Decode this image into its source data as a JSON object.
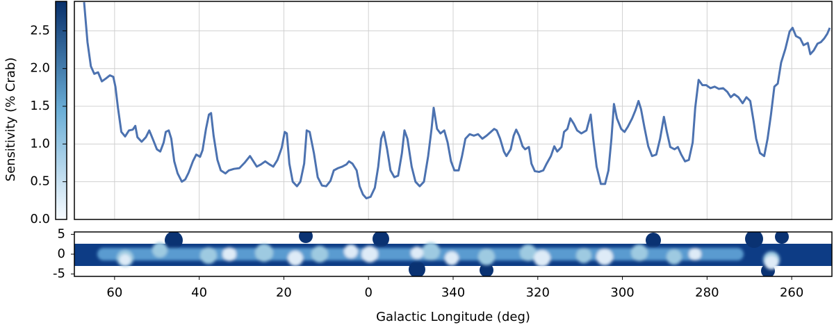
{
  "chart_data": [
    {
      "type": "line",
      "ylabel": "Sensitivity (% Crab)",
      "color": "#4c72b0",
      "colorbar": [
        "#f7fbff",
        "#6baed6",
        "#08306b"
      ],
      "grid": true,
      "ylim": [
        0,
        2.89
      ],
      "yticks": [
        {
          "value": 0,
          "label": "0.0"
        },
        0.5,
        {
          "value": 1,
          "label": "1.0"
        },
        1.5,
        {
          "value": 2,
          "label": "2.0"
        },
        2.5
      ],
      "x": [
        67.2,
        66.4,
        65.6,
        64.8,
        63.9,
        63.0,
        62.0,
        61.1,
        60.3,
        59.8,
        59.2,
        58.4,
        57.5,
        56.6,
        55.7,
        55.1,
        54.6,
        53.6,
        52.6,
        51.8,
        51.0,
        50.0,
        49.2,
        48.4,
        47.9,
        47.2,
        46.6,
        45.9,
        45.1,
        44.1,
        43.3,
        42.5,
        41.5,
        40.7,
        39.8,
        39.2,
        38.4,
        37.7,
        37.2,
        36.6,
        35.7,
        34.9,
        33.8,
        33.0,
        31.8,
        30.5,
        29.3,
        28.0,
        27.2,
        26.4,
        25.4,
        24.4,
        23.4,
        22.5,
        21.5,
        20.5,
        19.8,
        19.3,
        18.7,
        17.9,
        16.9,
        16.1,
        15.2,
        14.6,
        13.9,
        12.9,
        12.0,
        11.0,
        10.0,
        9.0,
        8.2,
        7.2,
        6.2,
        5.2,
        4.6,
        3.8,
        2.8,
        2.1,
        1.3,
        0.5,
        -0.5,
        -1.5,
        -2.3,
        -3.0,
        -3.6,
        -4.4,
        -5.2,
        -6.1,
        -7.0,
        -7.9,
        -8.5,
        -9.2,
        -10.2,
        -11.1,
        -12.1,
        -13.1,
        -14.1,
        -14.9,
        -15.4,
        -16.2,
        -17.0,
        -17.9,
        -18.7,
        -19.5,
        -20.3,
        -21.3,
        -22.1,
        -22.9,
        -23.9,
        -24.9,
        -25.9,
        -26.9,
        -27.9,
        -28.9,
        -29.7,
        -30.3,
        -31.1,
        -32.0,
        -32.6,
        -33.6,
        -34.3,
        -34.9,
        -35.6,
        -36.4,
        -37.0,
        -37.9,
        -38.5,
        -39.3,
        -40.3,
        -41.3,
        -42.1,
        -43.1,
        -43.9,
        -44.6,
        -45.6,
        -46.2,
        -47.0,
        -47.7,
        -48.5,
        -49.3,
        -50.3,
        -51.5,
        -52.5,
        -53.1,
        -53.9,
        -54.9,
        -55.9,
        -56.7,
        -57.4,
        -58.0,
        -58.7,
        -59.7,
        -60.5,
        -61.3,
        -62.3,
        -63.1,
        -63.8,
        -64.4,
        -65.2,
        -66.1,
        -67.0,
        -68.0,
        -68.9,
        -69.8,
        -70.5,
        -71.3,
        -72.3,
        -73.1,
        -73.9,
        -74.8,
        -75.7,
        -76.6,
        -77.2,
        -78.0,
        -78.9,
        -79.8,
        -80.8,
        -81.8,
        -82.8,
        -83.8,
        -84.8,
        -85.6,
        -86.4,
        -87.4,
        -88.4,
        -89.3,
        -90.2,
        -91.0,
        -91.6,
        -92.5,
        -93.5,
        -94.3,
        -95.1,
        -95.9,
        -96.7,
        -97.5,
        -98.5,
        -99.5,
        -100.2,
        -101.0,
        -102.0,
        -102.8,
        -103.8,
        -104.4,
        -105.2,
        -106.1,
        -106.9,
        -107.7,
        -108.4,
        -109.0
      ],
      "values": [
        2.88,
        2.35,
        2.03,
        1.93,
        1.95,
        1.83,
        1.87,
        1.91,
        1.89,
        1.76,
        1.48,
        1.16,
        1.1,
        1.18,
        1.19,
        1.24,
        1.09,
        1.03,
        1.09,
        1.18,
        1.07,
        0.93,
        0.9,
        1.02,
        1.16,
        1.18,
        1.07,
        0.77,
        0.61,
        0.5,
        0.53,
        0.62,
        0.77,
        0.86,
        0.83,
        0.92,
        1.2,
        1.39,
        1.41,
        1.11,
        0.79,
        0.65,
        0.61,
        0.65,
        0.67,
        0.68,
        0.75,
        0.84,
        0.77,
        0.7,
        0.73,
        0.77,
        0.73,
        0.7,
        0.79,
        0.95,
        1.16,
        1.14,
        0.74,
        0.5,
        0.44,
        0.5,
        0.74,
        1.18,
        1.16,
        0.88,
        0.56,
        0.45,
        0.44,
        0.51,
        0.65,
        0.68,
        0.7,
        0.73,
        0.77,
        0.74,
        0.65,
        0.44,
        0.33,
        0.28,
        0.3,
        0.42,
        0.7,
        1.07,
        1.16,
        0.93,
        0.65,
        0.56,
        0.58,
        0.88,
        1.18,
        1.07,
        0.7,
        0.5,
        0.44,
        0.5,
        0.84,
        1.2,
        1.48,
        1.2,
        1.14,
        1.18,
        1.02,
        0.77,
        0.65,
        0.65,
        0.84,
        1.07,
        1.13,
        1.11,
        1.13,
        1.07,
        1.11,
        1.16,
        1.2,
        1.18,
        1.07,
        0.9,
        0.84,
        0.93,
        1.11,
        1.19,
        1.11,
        0.97,
        0.93,
        0.96,
        0.74,
        0.64,
        0.63,
        0.65,
        0.74,
        0.84,
        0.97,
        0.9,
        0.96,
        1.16,
        1.2,
        1.34,
        1.27,
        1.18,
        1.14,
        1.18,
        1.39,
        1.07,
        0.7,
        0.47,
        0.47,
        0.65,
        1.07,
        1.53,
        1.34,
        1.2,
        1.16,
        1.23,
        1.34,
        1.45,
        1.57,
        1.46,
        1.22,
        0.97,
        0.84,
        0.86,
        1.07,
        1.36,
        1.16,
        0.96,
        0.93,
        0.96,
        0.86,
        0.77,
        0.79,
        1.02,
        1.48,
        1.85,
        1.78,
        1.78,
        1.74,
        1.76,
        1.73,
        1.74,
        1.69,
        1.62,
        1.66,
        1.62,
        1.54,
        1.62,
        1.57,
        1.3,
        1.07,
        0.88,
        0.84,
        1.07,
        1.39,
        1.76,
        1.8,
        2.08,
        2.26,
        2.49,
        2.54,
        2.43,
        2.4,
        2.31,
        2.34,
        2.19,
        2.24,
        2.33,
        2.35,
        2.4,
        2.46,
        2.54
      ]
    },
    {
      "type": "map",
      "xlabel": "Galactic Longitude (deg)",
      "xlim": [
        69.5,
        -109.5
      ],
      "xticks": [
        60,
        40,
        20,
        0,
        {
          "value": -20,
          "label": "340"
        },
        {
          "value": -40,
          "label": "320"
        },
        {
          "value": -60,
          "label": "300"
        },
        {
          "value": -80,
          "label": "280"
        },
        {
          "value": -100,
          "label": "260"
        }
      ],
      "ylim": [
        -5.6,
        5.6
      ],
      "yticks": [
        5,
        0,
        -5
      ]
    }
  ]
}
